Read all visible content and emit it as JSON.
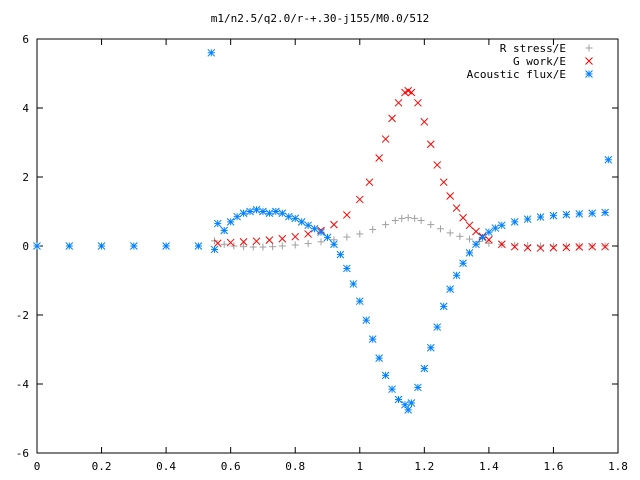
{
  "chart_data": {
    "type": "scatter",
    "title": "m1/n2.5/q2.0/r-+.30-j155/M0.0/512",
    "xlabel": "",
    "ylabel": "",
    "xlim": [
      0,
      1.8
    ],
    "ylim": [
      -6,
      6
    ],
    "x_ticks": [
      0,
      0.2,
      0.4,
      0.6,
      0.8,
      1,
      1.2,
      1.4,
      1.6,
      1.8
    ],
    "x_tick_labels": [
      "0",
      "0.2",
      "0.4",
      "0.6",
      "0.8",
      "1",
      "1.2",
      "1.4",
      "1.6",
      "1.8"
    ],
    "y_ticks": [
      -6,
      -4,
      -2,
      0,
      2,
      4,
      6
    ],
    "y_tick_labels": [
      "-6",
      "-4",
      "-2",
      "0",
      "2",
      "4",
      "6"
    ],
    "grid": false,
    "legend_position": "top-right",
    "series": [
      {
        "name": "R stress/E",
        "marker": "plus",
        "color": "#a0a0a0",
        "x": [
          0.55,
          0.58,
          0.61,
          0.64,
          0.67,
          0.7,
          0.73,
          0.76,
          0.8,
          0.84,
          0.88,
          0.92,
          0.96,
          1.0,
          1.04,
          1.08,
          1.11,
          1.13,
          1.15,
          1.17,
          1.19,
          1.22,
          1.25,
          1.28,
          1.31,
          1.34,
          1.37,
          1.4,
          1.44,
          1.48,
          1.52,
          1.56,
          1.6,
          1.64,
          1.68,
          1.72,
          1.76
        ],
        "y": [
          0.15,
          0.05,
          0.0,
          -0.02,
          -0.03,
          -0.03,
          -0.02,
          0.0,
          0.03,
          0.07,
          0.12,
          0.18,
          0.26,
          0.35,
          0.48,
          0.62,
          0.74,
          0.8,
          0.82,
          0.8,
          0.74,
          0.62,
          0.5,
          0.38,
          0.28,
          0.2,
          0.13,
          0.08,
          0.04,
          0.02,
          0.01,
          0.0,
          0.0,
          0.0,
          0.0,
          0.0,
          0.0
        ]
      },
      {
        "name": "G work/E",
        "marker": "cross",
        "color": "#ff0000",
        "x": [
          0.56,
          0.6,
          0.64,
          0.68,
          0.72,
          0.76,
          0.8,
          0.84,
          0.88,
          0.92,
          0.96,
          1.0,
          1.03,
          1.06,
          1.08,
          1.1,
          1.12,
          1.14,
          1.15,
          1.16,
          1.18,
          1.2,
          1.22,
          1.24,
          1.26,
          1.28,
          1.3,
          1.32,
          1.34,
          1.36,
          1.38,
          1.4,
          1.44,
          1.48,
          1.52,
          1.56,
          1.6,
          1.64,
          1.68,
          1.72,
          1.76
        ],
        "y": [
          0.08,
          0.1,
          0.12,
          0.14,
          0.17,
          0.21,
          0.27,
          0.35,
          0.45,
          0.62,
          0.9,
          1.35,
          1.85,
          2.55,
          3.1,
          3.7,
          4.15,
          4.45,
          4.5,
          4.45,
          4.15,
          3.6,
          2.95,
          2.35,
          1.85,
          1.45,
          1.1,
          0.82,
          0.6,
          0.42,
          0.28,
          0.18,
          0.05,
          -0.02,
          -0.05,
          -0.06,
          -0.05,
          -0.04,
          -0.03,
          -0.02,
          -0.02
        ]
      },
      {
        "name": "Acoustic flux/E",
        "marker": "star",
        "color": "#0080ff",
        "x": [
          0.0,
          0.1,
          0.2,
          0.3,
          0.4,
          0.5,
          0.54,
          0.55,
          0.56,
          0.58,
          0.6,
          0.62,
          0.64,
          0.66,
          0.68,
          0.7,
          0.72,
          0.74,
          0.76,
          0.78,
          0.8,
          0.82,
          0.84,
          0.86,
          0.88,
          0.9,
          0.92,
          0.94,
          0.96,
          0.98,
          1.0,
          1.02,
          1.04,
          1.06,
          1.08,
          1.1,
          1.12,
          1.14,
          1.15,
          1.16,
          1.18,
          1.2,
          1.22,
          1.24,
          1.26,
          1.28,
          1.3,
          1.32,
          1.34,
          1.36,
          1.38,
          1.4,
          1.42,
          1.44,
          1.48,
          1.52,
          1.56,
          1.6,
          1.64,
          1.68,
          1.72,
          1.76,
          1.77
        ],
        "y": [
          0.0,
          0.0,
          0.0,
          0.0,
          0.0,
          0.0,
          5.6,
          -0.1,
          0.65,
          0.45,
          0.7,
          0.85,
          0.95,
          1.0,
          1.05,
          1.0,
          0.95,
          1.0,
          0.95,
          0.85,
          0.8,
          0.7,
          0.6,
          0.5,
          0.4,
          0.25,
          0.05,
          -0.25,
          -0.65,
          -1.1,
          -1.6,
          -2.15,
          -2.7,
          -3.25,
          -3.75,
          -4.15,
          -4.45,
          -4.6,
          -4.75,
          -4.55,
          -4.1,
          -3.55,
          -2.95,
          -2.35,
          -1.75,
          -1.25,
          -0.85,
          -0.5,
          -0.2,
          0.05,
          0.25,
          0.4,
          0.52,
          0.6,
          0.7,
          0.78,
          0.84,
          0.88,
          0.91,
          0.93,
          0.95,
          0.97,
          2.5
        ]
      }
    ]
  }
}
